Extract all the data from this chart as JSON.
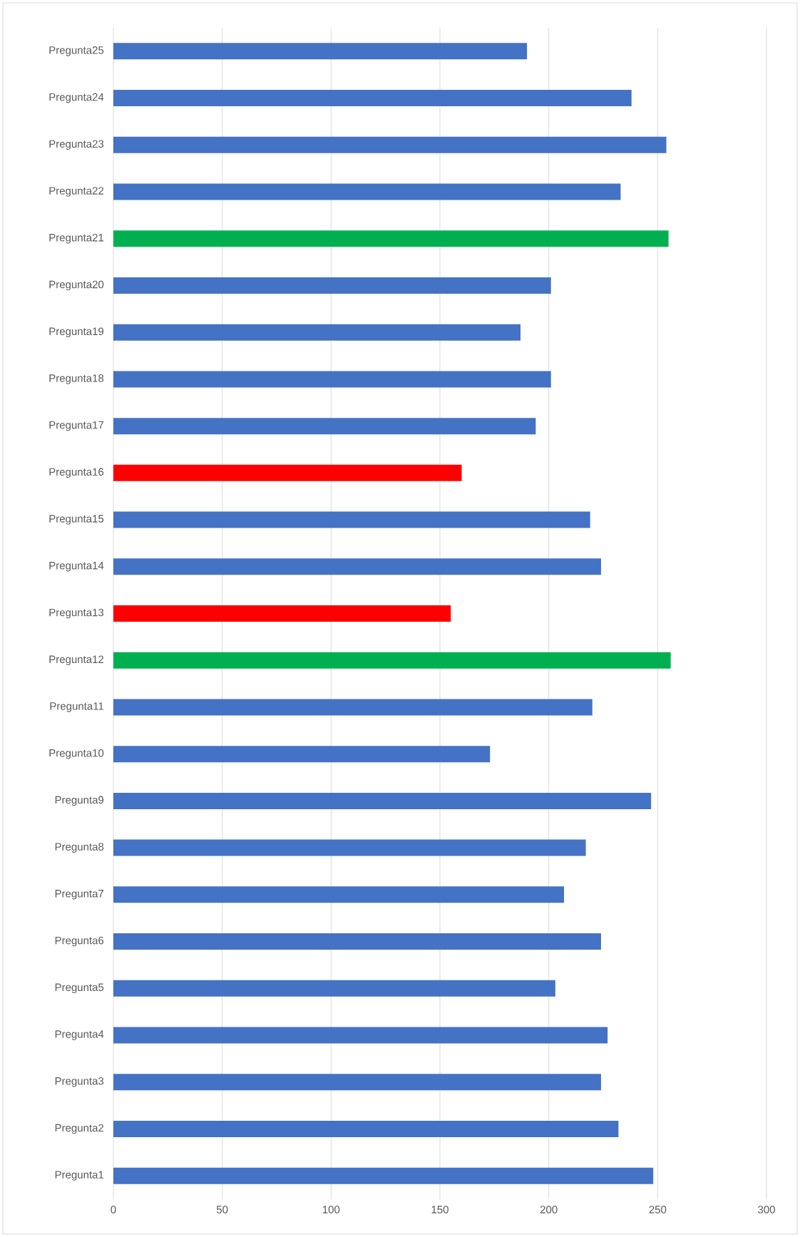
{
  "chart_data": {
    "type": "bar",
    "orientation": "horizontal",
    "categories": [
      "Pregunta25",
      "Pregunta24",
      "Pregunta23",
      "Pregunta22",
      "Pregunta21",
      "Pregunta20",
      "Pregunta19",
      "Pregunta18",
      "Pregunta17",
      "Pregunta16",
      "Pregunta15",
      "Pregunta14",
      "Pregunta13",
      "Pregunta12",
      "Pregunta11",
      "Pregunta10",
      "Pregunta9",
      "Pregunta8",
      "Pregunta7",
      "Pregunta6",
      "Pregunta5",
      "Pregunta4",
      "Pregunta3",
      "Pregunta2",
      "Pregunta1"
    ],
    "values": [
      190,
      238,
      254,
      233,
      255,
      201,
      187,
      201,
      194,
      160,
      219,
      224,
      155,
      256,
      220,
      173,
      247,
      217,
      207,
      224,
      203,
      227,
      224,
      232,
      248
    ],
    "colors": [
      "#4472c4",
      "#4472c4",
      "#4472c4",
      "#4472c4",
      "#00b050",
      "#4472c4",
      "#4472c4",
      "#4472c4",
      "#4472c4",
      "#ff0000",
      "#4472c4",
      "#4472c4",
      "#ff0000",
      "#00b050",
      "#4472c4",
      "#4472c4",
      "#4472c4",
      "#4472c4",
      "#4472c4",
      "#4472c4",
      "#4472c4",
      "#4472c4",
      "#4472c4",
      "#4472c4",
      "#4472c4"
    ],
    "xlim": [
      0,
      300
    ],
    "xticks": [
      0,
      50,
      100,
      150,
      200,
      250,
      300
    ],
    "grid": "x"
  }
}
